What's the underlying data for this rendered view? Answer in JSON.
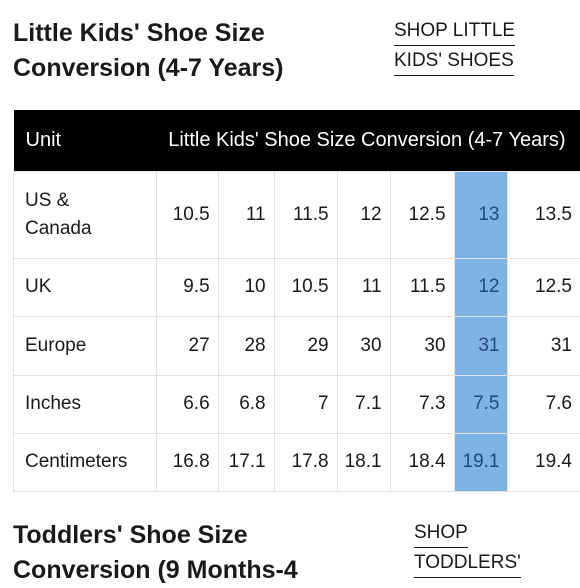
{
  "little_kids": {
    "title": "Little Kids' Shoe Size\nConversion (4-7 Years)",
    "shop_link_lines": [
      "SHOP LITTLE",
      "KIDS' SHOES"
    ],
    "table": {
      "header_unit": "Unit",
      "header_title": "Little Kids' Shoe Size Conversion (4-7 Years)",
      "highlight_column_index": 5,
      "rows": [
        {
          "label": "US &\nCanada",
          "values": [
            "10.5",
            "11",
            "11.5",
            "12",
            "12.5",
            "13",
            "13.5"
          ]
        },
        {
          "label": "UK",
          "values": [
            "9.5",
            "10",
            "10.5",
            "11",
            "11.5",
            "12",
            "12.5"
          ]
        },
        {
          "label": "Europe",
          "values": [
            "27",
            "28",
            "29",
            "30",
            "30",
            "31",
            "31"
          ]
        },
        {
          "label": "Inches",
          "values": [
            "6.6",
            "6.8",
            "7",
            "7.1",
            "7.3",
            "7.5",
            "7.6"
          ]
        },
        {
          "label": "Centimeters",
          "values": [
            "16.8",
            "17.1",
            "17.8",
            "18.1",
            "18.4",
            "19.1",
            "19.4"
          ]
        }
      ]
    }
  },
  "toddlers": {
    "title": "Toddlers' Shoe Size\nConversion (9 Months-4",
    "shop_link_lines": [
      "SHOP",
      "TODDLERS'"
    ]
  },
  "colors": {
    "header_bg": "#000000",
    "highlight": "#7fb3e3",
    "highlight_text": "#1f4a80",
    "grid_line": "#e2e2e2"
  }
}
